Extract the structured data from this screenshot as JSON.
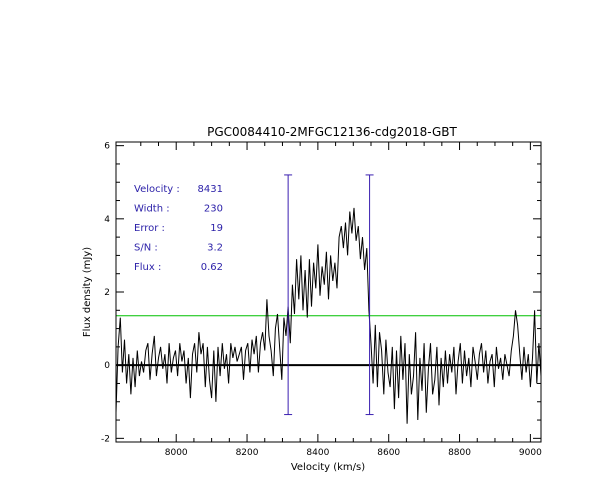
{
  "chart_data": {
    "type": "line",
    "title": "PGC0084410-2MFGC12136-cdg2018-GBT",
    "xlabel": "Velocity (km/s)",
    "ylabel": "Flux density (mJy)",
    "xlim": [
      7830,
      9030
    ],
    "ylim": [
      -2.1,
      6.1
    ],
    "xticks": [
      8000,
      8200,
      8400,
      8600,
      8800,
      9000
    ],
    "yticks": [
      -2,
      0,
      2,
      4,
      6
    ],
    "grid": false,
    "colors": {
      "spectrum": "#000000",
      "zero_line": "#000000",
      "threshold_line": "#00c000",
      "markers": "#3a1fb0",
      "annotation_text": "#2a1fa8"
    },
    "annotations": [
      {
        "label": "Velocity :",
        "value": "8431"
      },
      {
        "label": "Width :",
        "value": "230"
      },
      {
        "label": "Error :",
        "value": "19"
      },
      {
        "label": "S/N :",
        "value": "3.2"
      },
      {
        "label": "Flux :",
        "value": "0.62"
      }
    ],
    "threshold_y": 1.35,
    "zero_y": 0,
    "velocity_markers": [
      8316,
      8546
    ],
    "velocity_marker_range": [
      -1.35,
      5.2
    ],
    "series": [
      {
        "x": [
          7830,
          7836,
          7842,
          7848,
          7854,
          7860,
          7866,
          7872,
          7878,
          7884,
          7890,
          7896,
          7902,
          7908,
          7914,
          7920,
          7926,
          7932,
          7938,
          7944,
          7950,
          7956,
          7962,
          7968,
          7974,
          7980,
          7986,
          7992,
          7998,
          8004,
          8010,
          8016,
          8022,
          8028,
          8034,
          8040,
          8046,
          8052,
          8058,
          8064,
          8070,
          8076,
          8082,
          8088,
          8094,
          8100,
          8106,
          8112,
          8118,
          8124,
          8130,
          8136,
          8142,
          8148,
          8154,
          8160,
          8166,
          8172,
          8178,
          8184,
          8190,
          8196,
          8202,
          8208,
          8214,
          8220,
          8226,
          8232,
          8238,
          8244,
          8250,
          8256,
          8262,
          8268,
          8274,
          8280,
          8286,
          8292,
          8298,
          8304,
          8310,
          8316,
          8322,
          8328,
          8334,
          8340,
          8346,
          8352,
          8358,
          8364,
          8370,
          8376,
          8382,
          8388,
          8394,
          8400,
          8406,
          8412,
          8418,
          8424,
          8430,
          8436,
          8442,
          8448,
          8454,
          8460,
          8466,
          8472,
          8478,
          8484,
          8490,
          8496,
          8502,
          8508,
          8514,
          8520,
          8526,
          8532,
          8538,
          8544,
          8550,
          8556,
          8562,
          8568,
          8574,
          8580,
          8586,
          8592,
          8598,
          8604,
          8610,
          8616,
          8622,
          8628,
          8634,
          8640,
          8646,
          8652,
          8658,
          8664,
          8670,
          8676,
          8682,
          8688,
          8694,
          8700,
          8706,
          8712,
          8718,
          8724,
          8730,
          8736,
          8742,
          8748,
          8754,
          8760,
          8766,
          8772,
          8778,
          8784,
          8790,
          8796,
          8802,
          8808,
          8814,
          8820,
          8826,
          8832,
          8838,
          8844,
          8850,
          8856,
          8862,
          8868,
          8874,
          8880,
          8886,
          8892,
          8898,
          8904,
          8910,
          8916,
          8922,
          8928,
          8934,
          8940,
          8946,
          8952,
          8958,
          8964,
          8970,
          8976,
          8982,
          8988,
          8994,
          9000,
          9006,
          9012,
          9018,
          9024,
          9030
        ],
        "y": [
          -1.3,
          0.5,
          1.3,
          -0.2,
          0.7,
          -0.5,
          0.3,
          -0.8,
          0.2,
          -0.6,
          0.4,
          -0.3,
          0.1,
          -0.2,
          0.4,
          0.6,
          -0.4,
          0.3,
          0.8,
          -0.3,
          0.2,
          0.5,
          -0.1,
          0.3,
          -0.5,
          0.6,
          -0.2,
          0.2,
          0.4,
          -0.3,
          0.6,
          0.1,
          0.4,
          -0.5,
          0.2,
          -0.9,
          0.3,
          0.6,
          -0.2,
          0.9,
          0.3,
          0.6,
          -0.6,
          0.5,
          -0.4,
          -0.9,
          0.4,
          -1.0,
          0.5,
          -0.3,
          0.6,
          -0.1,
          0.3,
          -0.5,
          0.6,
          0.2,
          0.5,
          0.1,
          0.3,
          0.5,
          -0.4,
          0.4,
          0.6,
          -0.2,
          0.7,
          0.3,
          0.8,
          -0.2,
          0.6,
          0.9,
          0.4,
          1.8,
          0.8,
          0.4,
          -0.3,
          1.0,
          1.4,
          0.5,
          -0.4,
          1.3,
          0.8,
          1.6,
          0.6,
          2.2,
          1.4,
          2.9,
          1.8,
          3.0,
          1.5,
          2.6,
          1.3,
          2.9,
          1.6,
          2.8,
          2.1,
          3.3,
          1.9,
          2.7,
          2.2,
          3.1,
          1.8,
          3.0,
          2.3,
          2.8,
          2.1,
          3.5,
          3.8,
          3.2,
          3.9,
          3.0,
          4.2,
          3.6,
          4.3,
          3.4,
          3.8,
          2.9,
          3.5,
          2.6,
          3.2,
          1.5,
          0.6,
          -0.5,
          1.1,
          -0.6,
          0.9,
          0.4,
          -0.8,
          0.7,
          -0.2,
          -0.6,
          0.5,
          -1.2,
          0.4,
          -0.9,
          0.8,
          -0.4,
          0.6,
          -1.6,
          0.3,
          -0.8,
          -0.3,
          0.9,
          -1.5,
          0.2,
          -0.7,
          0.6,
          -1.3,
          -0.1,
          0.6,
          -0.8,
          -0.4,
          0.5,
          -1.1,
          0.2,
          -0.6,
          0.4,
          -0.5,
          0.3,
          -0.2,
          0.5,
          -0.8,
          0.1,
          0.6,
          -0.5,
          0.4,
          -0.3,
          0.2,
          -0.6,
          0.5,
          0.1,
          -0.4,
          0.3,
          0.6,
          -0.2,
          0.4,
          -0.5,
          0.1,
          0.3,
          -0.6,
          0.5,
          -0.1,
          0.2,
          -0.4,
          0.3,
          0.0,
          -0.3,
          0.4,
          0.8,
          1.5,
          1.1,
          0.3,
          -0.4,
          0.5,
          -0.2,
          0.3,
          -0.6,
          0.2,
          1.5,
          -0.5,
          0.6,
          -0.3
        ]
      }
    ]
  }
}
